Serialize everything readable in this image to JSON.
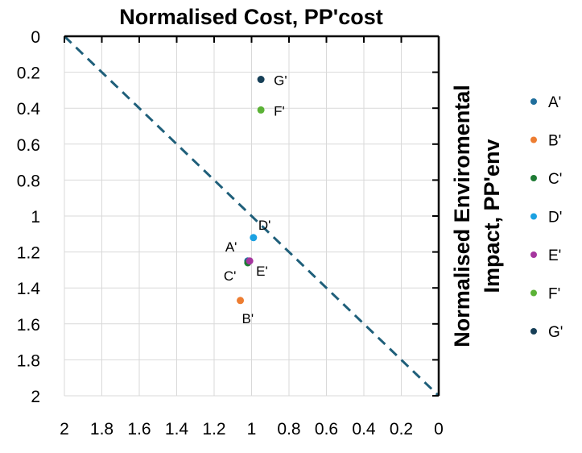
{
  "chart_data": {
    "type": "scatter",
    "title": "Normalised Cost, PP'cost",
    "xlabel": "Normalised Cost, PP'cost",
    "ylabel": [
      "Normalised Enviromental",
      "Impact, PP'env"
    ],
    "xlim": [
      2,
      0
    ],
    "ylim": [
      0,
      2
    ],
    "x_reversed": true,
    "y_reversed": true,
    "x_ticks": [
      "2",
      "1.8",
      "1.6",
      "1.4",
      "1.2",
      "1",
      "0.8",
      "0.6",
      "0.4",
      "0.2",
      "0"
    ],
    "y_ticks": [
      "0",
      "0.2",
      "0.4",
      "0.6",
      "0.8",
      "1",
      "1.2",
      "1.4",
      "1.6",
      "1.8",
      "2"
    ],
    "grid": true,
    "legend_position": "right",
    "reference_line": {
      "style": "dashed",
      "color": "#1f5f7a",
      "from": [
        2,
        0
      ],
      "to": [
        0,
        2
      ]
    },
    "series": [
      {
        "name": "A'",
        "label": "A'",
        "x": 1.02,
        "y": 1.25,
        "color": "#1f6e9c"
      },
      {
        "name": "B'",
        "label": "B'",
        "x": 1.06,
        "y": 1.47,
        "color": "#ed7d31"
      },
      {
        "name": "C'",
        "label": "C'",
        "x": 1.02,
        "y": 1.26,
        "color": "#1e7b34"
      },
      {
        "name": "D'",
        "label": "D'",
        "x": 0.99,
        "y": 1.12,
        "color": "#1ba1e2"
      },
      {
        "name": "E'",
        "label": "E'",
        "x": 1.01,
        "y": 1.25,
        "color": "#a5359e"
      },
      {
        "name": "F'",
        "label": "F'",
        "x": 0.95,
        "y": 0.41,
        "color": "#5bb236"
      },
      {
        "name": "G'",
        "label": "G'",
        "x": 0.95,
        "y": 0.24,
        "color": "#163f57"
      }
    ]
  }
}
